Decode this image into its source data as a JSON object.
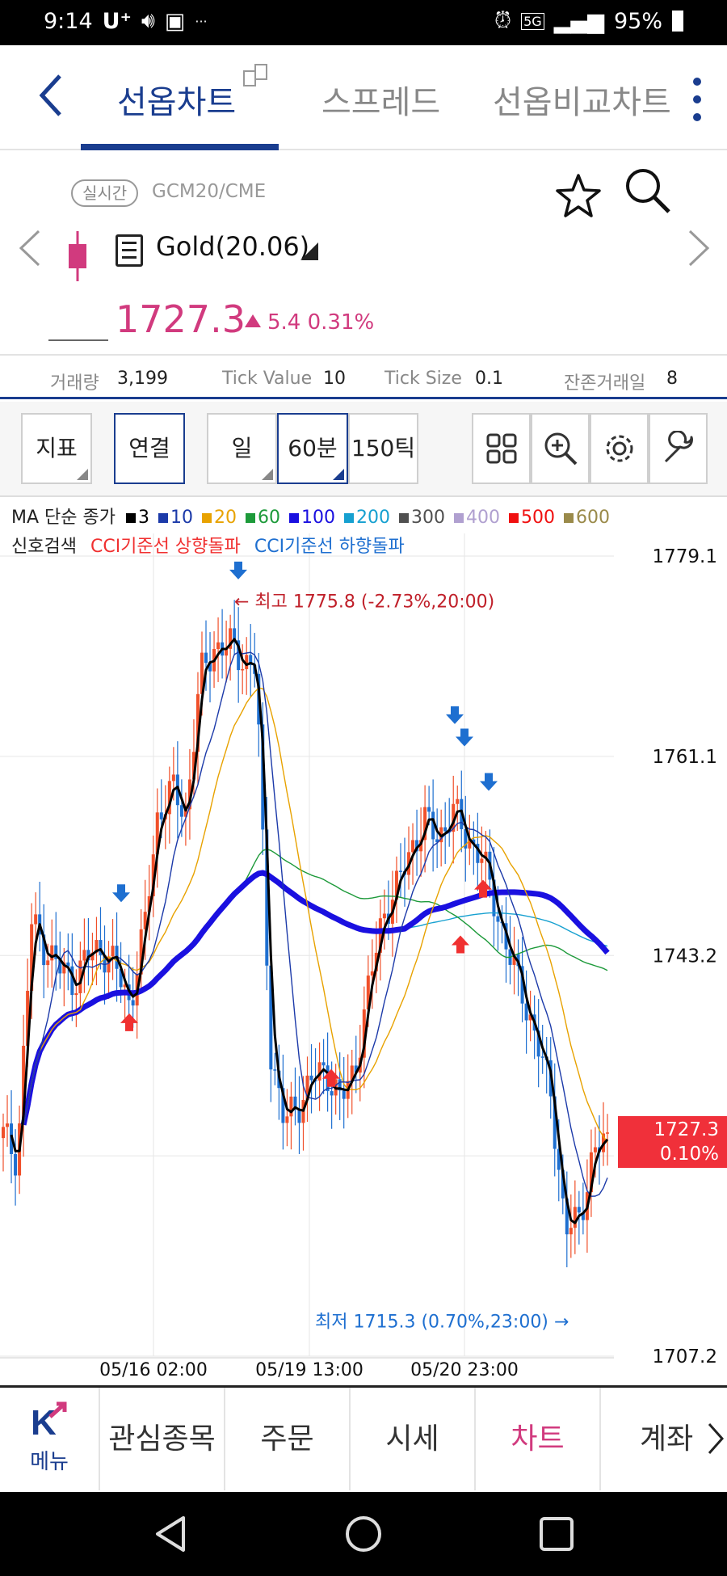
{
  "status_bar": {
    "time": "9:14",
    "carrier": "U⁺",
    "battery": "95%",
    "network": "5G"
  },
  "top_nav": {
    "tabs": [
      {
        "label": "선옵차트"
      },
      {
        "label": "스프레드"
      },
      {
        "label": "선옵비교차트"
      }
    ]
  },
  "quote": {
    "realtime_badge": "실시간",
    "code": "GCM20/CME",
    "name": "Gold(20.06)",
    "price": "1727.3",
    "change": "5.4",
    "change_pct": "0.31%"
  },
  "info": {
    "volume_label": "거래량",
    "volume": "3,199",
    "tick_value_label": "Tick Value",
    "tick_value": "10",
    "tick_size_label": "Tick Size",
    "tick_size": "0.1",
    "remaining_days_label": "잔존거래일",
    "remaining_days": "8"
  },
  "toolbar": {
    "indicator": "지표",
    "link": "연결",
    "day": "일",
    "min60": "60분",
    "tick150": "150틱"
  },
  "ma_legend": {
    "title": "MA 단순 종가",
    "items": [
      {
        "label": "3",
        "color": "#000000"
      },
      {
        "label": "10",
        "color": "#1c3aa9"
      },
      {
        "label": "20",
        "color": "#e8a200"
      },
      {
        "label": "60",
        "color": "#1d9a3a"
      },
      {
        "label": "100",
        "color": "#1a10e0"
      },
      {
        "label": "200",
        "color": "#16a0d0"
      },
      {
        "label": "300",
        "color": "#505050"
      },
      {
        "label": "400",
        "color": "#b0a0d0"
      },
      {
        "label": "500",
        "color": "#f01010"
      },
      {
        "label": "600",
        "color": "#9a8a4a"
      }
    ]
  },
  "signal": {
    "title": "신호검색",
    "up": "CCI기준선 상향돌파",
    "down": "CCI기준선 하향돌파"
  },
  "chart_data": {
    "type": "candlestick",
    "y_ticks": [
      "1779.1",
      "1761.1",
      "1743.2",
      "1707.2"
    ],
    "ylim": [
      1707.2,
      1779.1
    ],
    "x_ticks": [
      "05/16 02:00",
      "05/19 13:00",
      "05/20 23:00"
    ],
    "high_annotation": "← 최고 1775.8 (-2.73%,20:00)",
    "low_annotation": "최저 1715.3 (0.70%,23:00) →",
    "last_price": "1727.3",
    "last_pct": "0.10%",
    "close_series": [
      1727,
      1725,
      1746,
      1744,
      1742,
      1741,
      1743,
      1744,
      1742,
      1739,
      1745,
      1756,
      1758,
      1756,
      1768,
      1771,
      1771,
      1770,
      1769,
      1735,
      1728,
      1730,
      1732,
      1733,
      1730,
      1733,
      1740,
      1747,
      1749,
      1753,
      1755,
      1754,
      1756,
      1754,
      1752,
      1748,
      1743,
      1740,
      1735,
      1731,
      1718,
      1720,
      1725,
      1727.3
    ]
  },
  "bottom_nav": {
    "menu": "메뉴",
    "items": [
      "관심종목",
      "주문",
      "시세",
      "차트",
      "계좌"
    ]
  }
}
